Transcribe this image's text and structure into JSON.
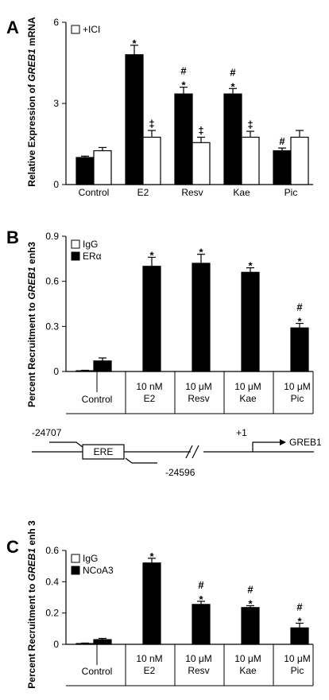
{
  "chart_data": [
    {
      "panel": "A",
      "type": "bar",
      "ylabel": "Relative Expression of GREB1 mRNA",
      "ylim": [
        0,
        6
      ],
      "yticks": [
        "0",
        "3",
        "6"
      ],
      "categories": [
        "Control",
        "E2",
        "Resv",
        "Kae",
        "Pic"
      ],
      "legend": [
        "+ICI"
      ],
      "series": [
        {
          "fill": "#000000",
          "values": [
            1.0,
            4.8,
            3.35,
            3.35,
            1.25
          ],
          "errors": [
            0.05,
            0.35,
            0.25,
            0.2,
            0.1
          ],
          "markers": [
            "",
            "*",
            "#\n*",
            "#\n*",
            "#"
          ]
        },
        {
          "name": "+ICI",
          "fill": "#ffffff",
          "values": [
            1.25,
            1.75,
            1.55,
            1.75,
            1.75
          ],
          "errors": [
            0.12,
            0.25,
            0.2,
            0.22,
            0.25
          ],
          "markers": [
            "",
            "‡",
            "‡",
            "‡",
            ""
          ]
        }
      ],
      "grid": false
    },
    {
      "panel": "B",
      "type": "bar",
      "ylabel": "Percent Recruitment to GREB1 enh3",
      "ylim": [
        0,
        0.9
      ],
      "yticks": [
        "0",
        "0.3",
        "0.6",
        "0.9"
      ],
      "categories": [
        "Control",
        "10 nM\nE2",
        "10 μM\nResv",
        "10 μM\nKae",
        "10 μM\nPic"
      ],
      "legend": [
        "IgG",
        "ERα"
      ],
      "series": [
        {
          "name": "IgG",
          "fill": "#ffffff",
          "values": [
            0.005,
            0,
            0,
            0,
            0
          ],
          "errors": [
            0.003,
            0,
            0,
            0,
            0
          ]
        },
        {
          "name": "ERα",
          "fill": "#000000",
          "values": [
            0.07,
            0.7,
            0.72,
            0.66,
            0.29
          ],
          "errors": [
            0.02,
            0.06,
            0.06,
            0.03,
            0.03
          ],
          "markers": [
            "",
            "*",
            "*",
            "*",
            "#\n*"
          ]
        }
      ],
      "grid": false
    },
    {
      "panel": "C",
      "type": "bar",
      "ylabel": "Percent Recruitment to GREB1 enh 3",
      "ylim": [
        0,
        0.6
      ],
      "yticks": [
        "0",
        "0.2",
        "0.4",
        "0.6"
      ],
      "categories": [
        "Control",
        "10 nM\nE2",
        "10 μM\nResv",
        "10 μM\nKae",
        "10 μM\nPic"
      ],
      "legend": [
        "IgG",
        "NCoA3"
      ],
      "series": [
        {
          "name": "IgG",
          "fill": "#ffffff",
          "values": [
            0.005,
            0,
            0,
            0,
            0
          ],
          "errors": [
            0.003,
            0,
            0,
            0,
            0
          ]
        },
        {
          "name": "NCoA3",
          "fill": "#000000",
          "values": [
            0.03,
            0.52,
            0.255,
            0.235,
            0.105
          ],
          "errors": [
            0.008,
            0.03,
            0.02,
            0.012,
            0.03
          ],
          "markers": [
            "",
            "*",
            "#\n*",
            "#\n*",
            "#\n*"
          ]
        }
      ],
      "grid": false
    }
  ],
  "diagram": {
    "primer_forward": "-24707",
    "primer_reverse": "-24596",
    "element": "ERE",
    "tss": "+1",
    "gene": "GREB1"
  }
}
